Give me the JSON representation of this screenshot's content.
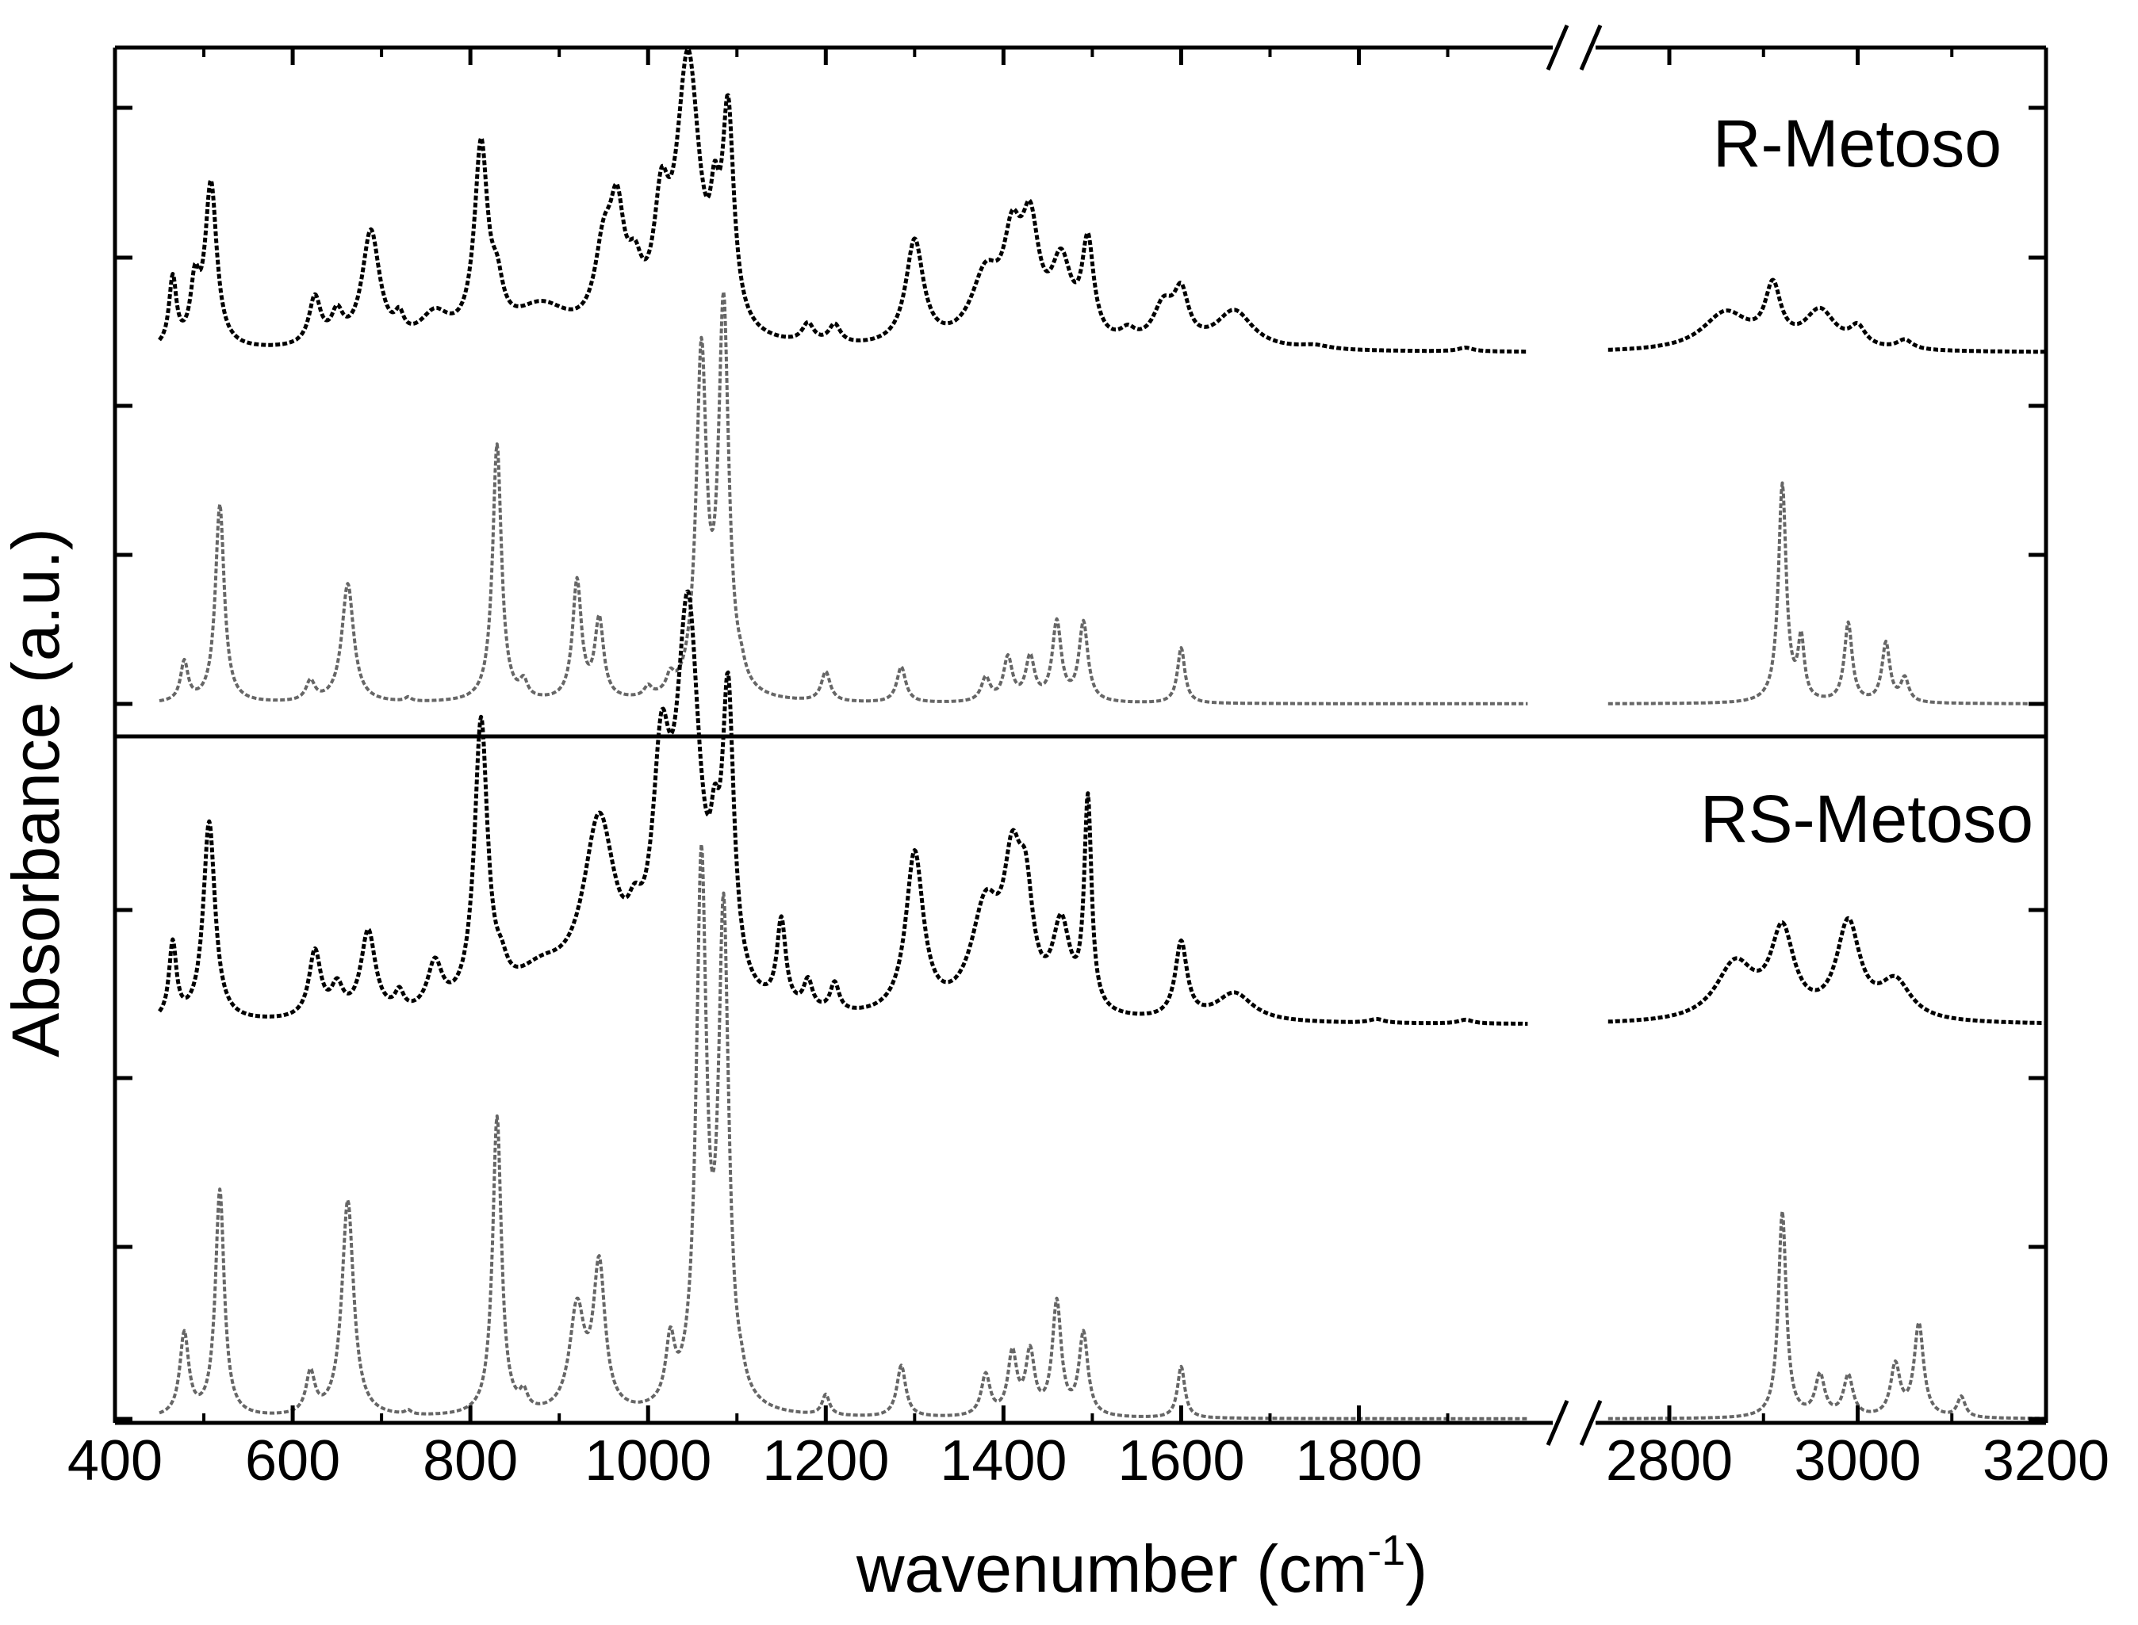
{
  "chart_data": {
    "type": "line",
    "xlabel": "wavenumber (cm",
    "xlabel_sup": "-1",
    "xlabel_close": ")",
    "ylabel": "Absorbance (a.u.)",
    "axis_break": "//",
    "x_ticks": [
      "400",
      "600",
      "800",
      "1000",
      "1200",
      "1400",
      "1600",
      "1800",
      "2800",
      "3000",
      "3200"
    ],
    "x_segments": [
      {
        "xlim": [
          400,
          2020
        ]
      },
      {
        "xlim": [
          2720,
          3200
        ]
      }
    ],
    "panels": [
      {
        "label": "R-Metoso",
        "series": [
          {
            "role": "experimental",
            "color": "#000000",
            "baseline": 0.28,
            "peaks": [
              [
                465,
                0.36,
                5
              ],
              [
                490,
                0.3,
                6
              ],
              [
                508,
                0.86,
                8
              ],
              [
                625,
                0.25,
                8
              ],
              [
                650,
                0.15,
                8
              ],
              [
                688,
                0.6,
                12
              ],
              [
                720,
                0.1,
                6
              ],
              [
                760,
                0.15,
                20
              ],
              [
                812,
                1.0,
                9
              ],
              [
                830,
                0.2,
                8
              ],
              [
                880,
                0.2,
                40
              ],
              [
                950,
                0.4,
                12
              ],
              [
                965,
                0.55,
                10
              ],
              [
                985,
                0.25,
                10
              ],
              [
                1015,
                0.55,
                10
              ],
              [
                1045,
                1.45,
                16
              ],
              [
                1075,
                0.4,
                6
              ],
              [
                1090,
                1.1,
                8
              ],
              [
                1180,
                0.1,
                8
              ],
              [
                1210,
                0.1,
                8
              ],
              [
                1300,
                0.55,
                12
              ],
              [
                1380,
                0.35,
                20
              ],
              [
                1410,
                0.45,
                12
              ],
              [
                1430,
                0.55,
                12
              ],
              [
                1465,
                0.4,
                14
              ],
              [
                1495,
                0.5,
                8
              ],
              [
                1540,
                0.06,
                10
              ],
              [
                1580,
                0.2,
                14
              ],
              [
                1600,
                0.25,
                10
              ],
              [
                1660,
                0.2,
                25
              ],
              [
                1750,
                0.02,
                20
              ],
              [
                1920,
                0.02,
                10
              ],
              [
                2860,
                0.2,
                30
              ],
              [
                2910,
                0.3,
                10
              ],
              [
                2960,
                0.2,
                20
              ],
              [
                3000,
                0.1,
                10
              ],
              [
                3050,
                0.05,
                10
              ]
            ]
          },
          {
            "role": "calculated",
            "color": "#666666",
            "baseline": 0.0,
            "peaks": [
              [
                478,
                0.2,
                5
              ],
              [
                518,
                1.0,
                6
              ],
              [
                620,
                0.1,
                6
              ],
              [
                662,
                0.6,
                8
              ],
              [
                730,
                0.02,
                4
              ],
              [
                830,
                1.3,
                6
              ],
              [
                860,
                0.08,
                5
              ],
              [
                920,
                0.6,
                6
              ],
              [
                945,
                0.4,
                6
              ],
              [
                1000,
                0.05,
                5
              ],
              [
                1025,
                0.08,
                5
              ],
              [
                1060,
                1.7,
                7
              ],
              [
                1085,
                1.95,
                7
              ],
              [
                1105,
                0.05,
                5
              ],
              [
                1200,
                0.15,
                6
              ],
              [
                1285,
                0.18,
                6
              ],
              [
                1380,
                0.12,
                6
              ],
              [
                1405,
                0.22,
                6
              ],
              [
                1430,
                0.22,
                6
              ],
              [
                1460,
                0.4,
                6
              ],
              [
                1490,
                0.4,
                6
              ],
              [
                1600,
                0.28,
                5
              ],
              [
                2920,
                1.1,
                5
              ],
              [
                2940,
                0.3,
                4
              ],
              [
                2990,
                0.4,
                5
              ],
              [
                3030,
                0.3,
                5
              ],
              [
                3050,
                0.12,
                5
              ]
            ]
          }
        ]
      },
      {
        "label": "RS-Metoso",
        "series": [
          {
            "role": "experimental",
            "color": "#000000",
            "baseline": 0.28,
            "peaks": [
              [
                465,
                0.4,
                5
              ],
              [
                506,
                1.05,
                8
              ],
              [
                625,
                0.35,
                8
              ],
              [
                650,
                0.15,
                8
              ],
              [
                685,
                0.45,
                10
              ],
              [
                720,
                0.1,
                6
              ],
              [
                760,
                0.25,
                10
              ],
              [
                812,
                1.5,
                9
              ],
              [
                835,
                0.1,
                8
              ],
              [
                880,
                0.2,
                40
              ],
              [
                945,
                0.95,
                22
              ],
              [
                985,
                0.2,
                10
              ],
              [
                1015,
                1.05,
                12
              ],
              [
                1045,
                2.0,
                16
              ],
              [
                1075,
                0.4,
                6
              ],
              [
                1090,
                1.5,
                8
              ],
              [
                1150,
                0.45,
                6
              ],
              [
                1180,
                0.15,
                6
              ],
              [
                1210,
                0.15,
                6
              ],
              [
                1300,
                0.85,
                12
              ],
              [
                1380,
                0.55,
                20
              ],
              [
                1410,
                0.65,
                12
              ],
              [
                1425,
                0.5,
                10
              ],
              [
                1465,
                0.45,
                12
              ],
              [
                1495,
                1.1,
                5
              ],
              [
                1600,
                0.4,
                8
              ],
              [
                1660,
                0.15,
                25
              ],
              [
                1820,
                0.02,
                10
              ],
              [
                1920,
                0.02,
                10
              ],
              [
                2870,
                0.3,
                25
              ],
              [
                2920,
                0.45,
                15
              ],
              [
                2990,
                0.5,
                15
              ],
              [
                3040,
                0.2,
                20
              ]
            ]
          },
          {
            "role": "calculated",
            "color": "#666666",
            "baseline": 0.0,
            "peaks": [
              [
                478,
                0.4,
                6
              ],
              [
                518,
                1.1,
                6
              ],
              [
                620,
                0.2,
                6
              ],
              [
                662,
                1.05,
                8
              ],
              [
                730,
                0.02,
                4
              ],
              [
                830,
                1.45,
                6
              ],
              [
                860,
                0.08,
                5
              ],
              [
                920,
                0.5,
                10
              ],
              [
                945,
                0.7,
                8
              ],
              [
                1025,
                0.3,
                6
              ],
              [
                1060,
                2.6,
                7
              ],
              [
                1085,
                2.35,
                7
              ],
              [
                1105,
                0.05,
                5
              ],
              [
                1200,
                0.1,
                5
              ],
              [
                1285,
                0.25,
                6
              ],
              [
                1380,
                0.2,
                6
              ],
              [
                1410,
                0.3,
                6
              ],
              [
                1430,
                0.3,
                6
              ],
              [
                1460,
                0.55,
                6
              ],
              [
                1490,
                0.4,
                6
              ],
              [
                1600,
                0.25,
                5
              ],
              [
                2920,
                1.0,
                5
              ],
              [
                2960,
                0.2,
                6
              ],
              [
                2990,
                0.2,
                6
              ],
              [
                3040,
                0.25,
                6
              ],
              [
                3065,
                0.45,
                6
              ],
              [
                3110,
                0.1,
                5
              ]
            ]
          }
        ]
      }
    ]
  }
}
